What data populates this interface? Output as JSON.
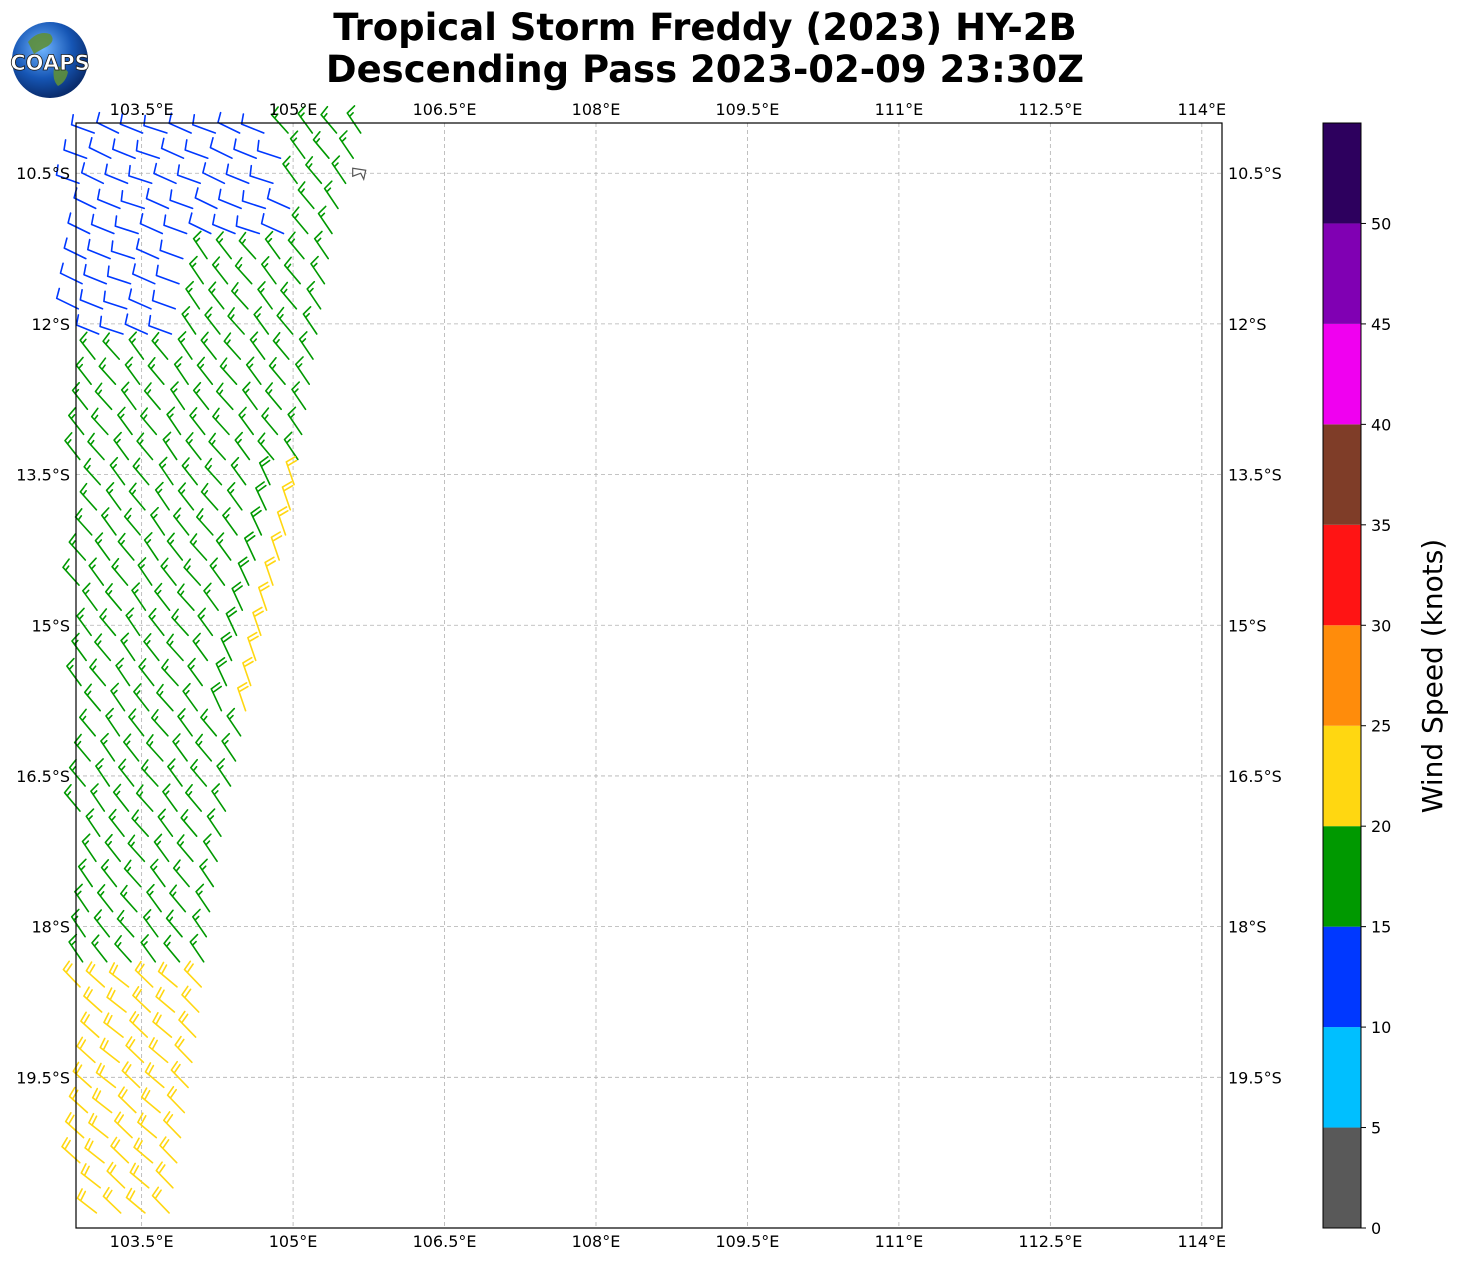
{
  "title_line1": "Tropical Storm Freddy (2023) HY-2B",
  "title_line2": "Descending Pass 2023-02-09 23:30Z",
  "logo_text": "COAPS",
  "map": {
    "lon_range": [
      102.85,
      114.2
    ],
    "lat_range": [
      -21.0,
      -10.0
    ],
    "lon_ticks": [
      "103.5°E",
      "105°E",
      "106.5°E",
      "108°E",
      "109.5°E",
      "111°E",
      "112.5°E",
      "114°E"
    ],
    "lon_tick_values": [
      103.5,
      105,
      106.5,
      108,
      109.5,
      111,
      112.5,
      114
    ],
    "lat_ticks": [
      "10.5°S",
      "12°S",
      "13.5°S",
      "15°S",
      "16.5°S",
      "18°S",
      "19.5°S"
    ],
    "lat_tick_values": [
      -10.5,
      -12,
      -13.5,
      -15,
      -16.5,
      -18,
      -19.5
    ],
    "gridlines": true,
    "storm_symbol_position": {
      "lon": 105.65,
      "lat": -10.5
    },
    "swath_east_edge": [
      {
        "lat": -10.0,
        "lon": 105.7
      },
      {
        "lat": -11.0,
        "lon": 105.4
      },
      {
        "lat": -12.0,
        "lon": 105.25
      },
      {
        "lat": -13.0,
        "lon": 105.1
      },
      {
        "lat": -14.0,
        "lon": 104.95
      },
      {
        "lat": -15.0,
        "lon": 104.7
      },
      {
        "lat": -16.0,
        "lon": 104.5
      },
      {
        "lat": -17.0,
        "lon": 104.3
      },
      {
        "lat": -18.0,
        "lon": 104.15
      },
      {
        "lat": -19.0,
        "lon": 104.05
      },
      {
        "lat": -20.0,
        "lon": 103.9
      },
      {
        "lat": -21.0,
        "lon": 103.75
      }
    ],
    "wind_regions": [
      {
        "lat_min": -12.3,
        "lat_max": -10.0,
        "speed_kt": 12,
        "dir_deg": 300,
        "note": "blue"
      },
      {
        "lat_min": -18.5,
        "lat_max": -10.4,
        "speed_kt": 17,
        "dir_deg": 330
      },
      {
        "lat_min": -21.0,
        "lat_max": -18.5,
        "speed_kt": 22,
        "dir_deg": 320
      },
      {
        "lat_min": -16.0,
        "lat_max": -13.5,
        "speed_kt": 21,
        "dir_deg": 345,
        "east_band_only": true
      }
    ]
  },
  "colorbar": {
    "label": "Wind Speed (knots)",
    "ticks": [
      "0",
      "5",
      "10",
      "15",
      "20",
      "25",
      "30",
      "35",
      "40",
      "45",
      "50"
    ],
    "bounds": [
      0,
      5,
      10,
      15,
      20,
      25,
      30,
      35,
      40,
      45,
      50,
      55
    ],
    "colors": [
      "#595959",
      "#00bfff",
      "#0038ff",
      "#009900",
      "#ffd711",
      "#ff8c0b",
      "#ff1414",
      "#7f3d28",
      "#f000f0",
      "#8000b3",
      "#2d005e"
    ]
  }
}
